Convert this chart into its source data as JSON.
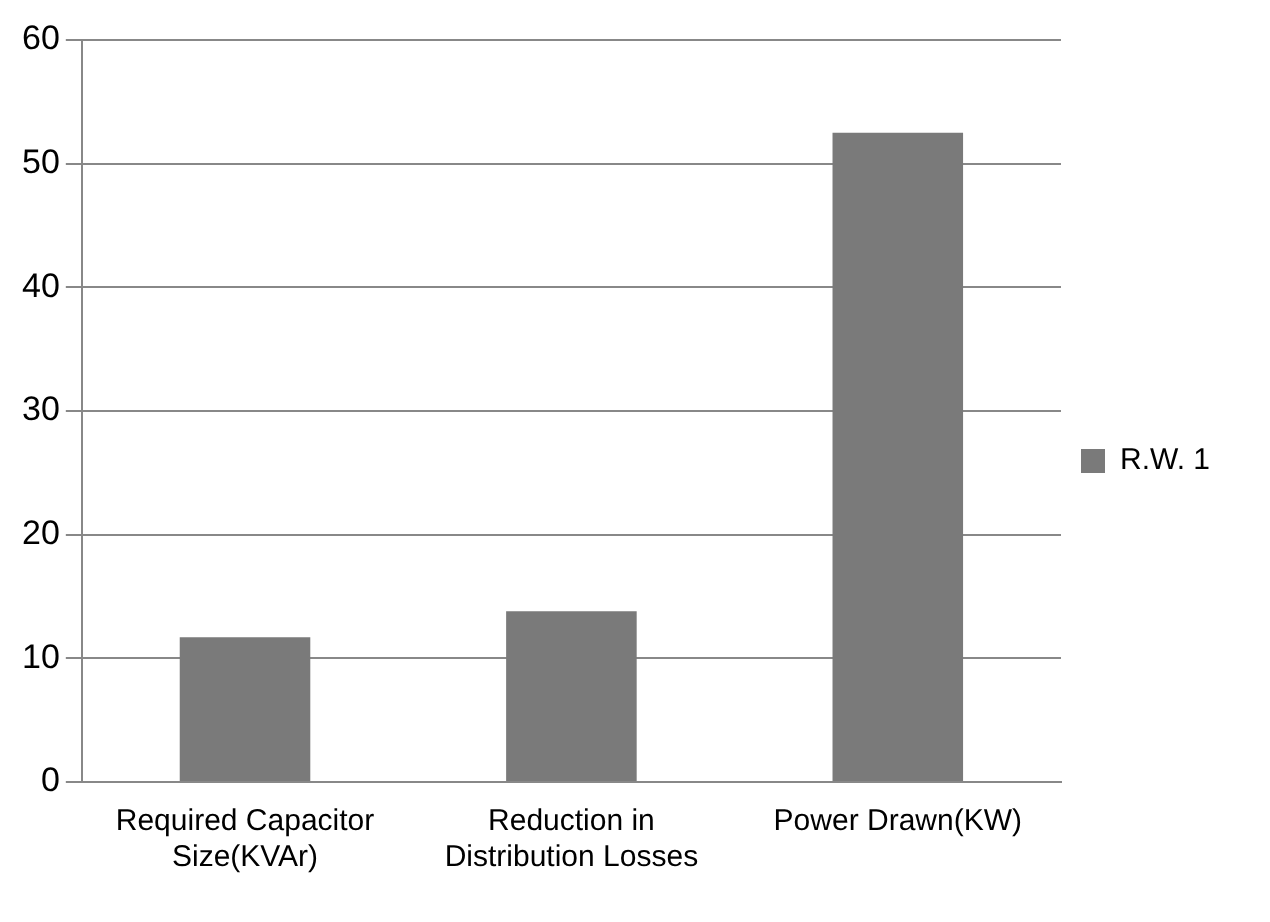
{
  "chart_data": {
    "type": "bar",
    "categories": [
      "Required Capacitor Size(KVAr)",
      "Reduction in Distribution Losses",
      "Power Drawn(KW)"
    ],
    "series": [
      {
        "name": "R.W. 1",
        "color": "#7a7a7a",
        "values": [
          11.7,
          13.8,
          52.5
        ]
      }
    ],
    "ylim": [
      0,
      60
    ],
    "yticks": [
      0,
      10,
      20,
      30,
      40,
      50,
      60
    ],
    "grid": "y",
    "legend": "right"
  }
}
